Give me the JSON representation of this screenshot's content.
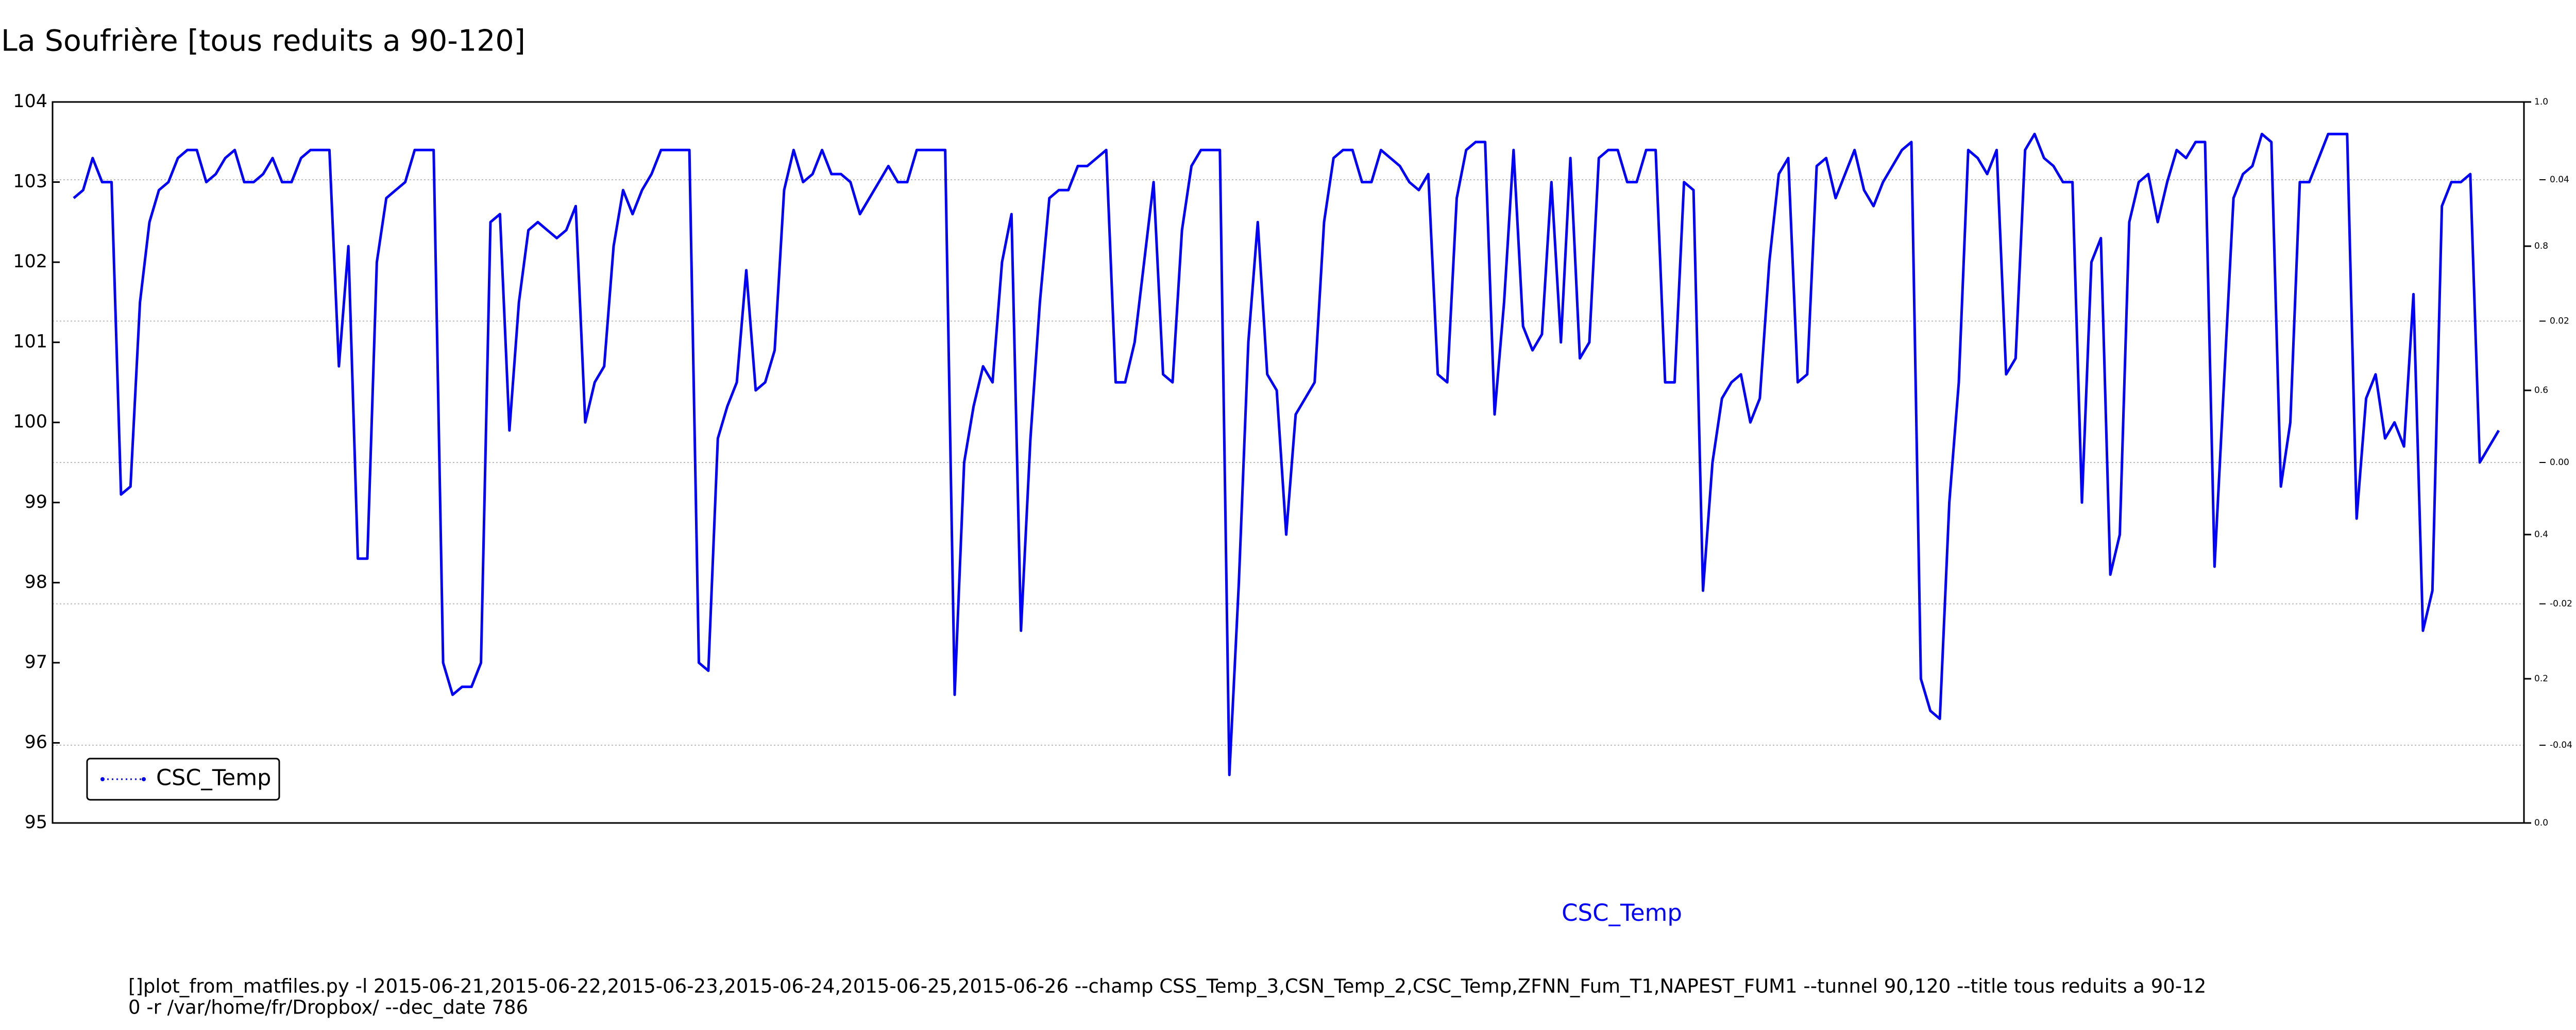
{
  "chart_data": {
    "type": "line",
    "title": "La Soufrière [tous reduits a 90-120]",
    "xlabel": "CSC_Temp",
    "footnote_lines": [
      "[]plot_from_matfiles.py -l 2015-06-21,2015-06-22,2015-06-23,2015-06-24,2015-06-25,2015-06-26 --champ CSS_Temp_3,CSN_Temp_2,CSC_Temp,ZFNN_Fum_T1,NAPEST_FUM1 --tunnel 90,120 --title tous reduits a 90-12",
      "0 -r /var/home/fr/Dropbox/ --dec_date 786"
    ],
    "series": [
      {
        "name": "CSC_Temp",
        "color": "#0000ff",
        "values": [
          102.8,
          102.9,
          103.3,
          103.0,
          103.0,
          99.1,
          99.2,
          101.5,
          102.5,
          102.9,
          103.0,
          103.3,
          103.4,
          103.4,
          103.0,
          103.1,
          103.3,
          103.4,
          103.0,
          103.0,
          103.1,
          103.3,
          103.0,
          103.0,
          103.3,
          103.4,
          103.4,
          103.4,
          100.7,
          102.2,
          98.3,
          98.3,
          102.0,
          102.8,
          102.9,
          103.0,
          103.4,
          103.4,
          103.4,
          97.0,
          96.6,
          96.7,
          96.7,
          97.0,
          102.5,
          102.6,
          99.9,
          101.5,
          102.4,
          102.5,
          102.4,
          102.3,
          102.4,
          102.7,
          100.0,
          100.5,
          100.7,
          102.2,
          102.9,
          102.6,
          102.9,
          103.1,
          103.4,
          103.4,
          103.4,
          103.4,
          97.0,
          96.9,
          99.8,
          100.2,
          100.5,
          101.9,
          100.4,
          100.5,
          100.9,
          102.9,
          103.4,
          103.0,
          103.1,
          103.4,
          103.1,
          103.1,
          103.0,
          102.6,
          102.8,
          103.0,
          103.2,
          103.0,
          103.0,
          103.4,
          103.4,
          103.4,
          103.4,
          96.6,
          99.5,
          100.2,
          100.7,
          100.5,
          102.0,
          102.6,
          97.4,
          99.8,
          101.5,
          102.8,
          102.9,
          102.9,
          103.2,
          103.2,
          103.3,
          103.4,
          100.5,
          100.5,
          101.0,
          102.0,
          103.0,
          100.6,
          100.5,
          102.4,
          103.2,
          103.4,
          103.4,
          103.4,
          95.6,
          98.0,
          101.0,
          102.5,
          100.6,
          100.4,
          98.6,
          100.1,
          100.3,
          100.5,
          102.5,
          103.3,
          103.4,
          103.4,
          103.0,
          103.0,
          103.4,
          103.3,
          103.2,
          103.0,
          102.9,
          103.1,
          100.6,
          100.5,
          102.8,
          103.4,
          103.5,
          103.5,
          100.1,
          101.5,
          103.4,
          101.2,
          100.9,
          101.1,
          103.0,
          101.0,
          103.3,
          100.8,
          101.0,
          103.3,
          103.4,
          103.4,
          103.0,
          103.0,
          103.4,
          103.4,
          100.5,
          100.5,
          103.0,
          102.9,
          97.9,
          99.5,
          100.3,
          100.5,
          100.6,
          100.0,
          100.3,
          102.0,
          103.1,
          103.3,
          100.5,
          100.6,
          103.2,
          103.3,
          102.8,
          103.1,
          103.4,
          102.9,
          102.7,
          103.0,
          103.2,
          103.4,
          103.5,
          96.8,
          96.4,
          96.3,
          99.0,
          100.5,
          103.4,
          103.3,
          103.1,
          103.4,
          100.6,
          100.8,
          103.4,
          103.6,
          103.3,
          103.2,
          103.0,
          103.0,
          99.0,
          102.0,
          102.3,
          98.1,
          98.6,
          102.5,
          103.0,
          103.1,
          102.5,
          103.0,
          103.4,
          103.3,
          103.5,
          103.5,
          98.2,
          100.5,
          102.8,
          103.1,
          103.2,
          103.6,
          103.5,
          99.2,
          100.0,
          103.0,
          103.0,
          103.3,
          103.6,
          103.6,
          103.6,
          98.8,
          100.3,
          100.6,
          99.8,
          100.0,
          99.7,
          101.6,
          97.4,
          97.9,
          102.7,
          103.0,
          103.0,
          103.1,
          99.5,
          99.7,
          99.9
        ]
      }
    ],
    "ylim": [
      95,
      104
    ],
    "yticks": [
      95,
      96,
      97,
      98,
      99,
      100,
      101,
      102,
      103,
      104
    ],
    "y2lim": [
      0,
      1
    ],
    "y2ticks": [
      {
        "value": 0,
        "label": "0.0"
      },
      0.2,
      0.4,
      0.6,
      0.8,
      {
        "value": 1,
        "label": "1.0"
      }
    ],
    "y3lim": [
      -0.051,
      0.051
    ],
    "y3ticks": [
      -0.04,
      -0.02,
      {
        "value": 0,
        "label": "0.00"
      },
      0.02,
      0.04
    ],
    "y3grid": true,
    "legend": "lower left"
  }
}
